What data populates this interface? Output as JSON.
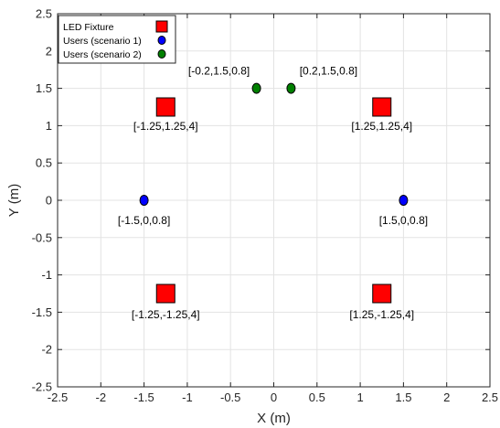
{
  "chart_data": {
    "type": "scatter",
    "xlabel": "X (m)",
    "ylabel": "Y (m)",
    "xlim": [
      -2.5,
      2.5
    ],
    "ylim": [
      -2.5,
      2.5
    ],
    "xticks": [
      -2.5,
      -2,
      -1.5,
      -1,
      -0.5,
      0,
      0.5,
      1,
      1.5,
      2,
      2.5
    ],
    "yticks": [
      -2.5,
      -2,
      -1.5,
      -1,
      -0.5,
      0,
      0.5,
      1,
      1.5,
      2,
      2.5
    ],
    "grid": true,
    "legend_position": "top-left",
    "series": [
      {
        "name": "LED Fixture",
        "marker": "square",
        "color": "#ff0000",
        "points": [
          {
            "x": -1.25,
            "y": 1.25,
            "label": "[-1.25,1.25,4]"
          },
          {
            "x": 1.25,
            "y": 1.25,
            "label": "[1.25,1.25,4]"
          },
          {
            "x": -1.25,
            "y": -1.25,
            "label": "[-1.25,-1.25,4]"
          },
          {
            "x": 1.25,
            "y": -1.25,
            "label": "[1.25,-1.25,4]"
          }
        ]
      },
      {
        "name": "Users (scenario 1)",
        "marker": "circle",
        "color": "#0000ff",
        "points": [
          {
            "x": -1.5,
            "y": 0,
            "label": "[-1.5,0,0.8]"
          },
          {
            "x": 1.5,
            "y": 0,
            "label": "[1.5,0,0.8]"
          }
        ]
      },
      {
        "name": "Users (scenario 2)",
        "marker": "circle",
        "color": "#008000",
        "points": [
          {
            "x": -0.2,
            "y": 1.5,
            "label": "[-0.2,1.5,0.8]"
          },
          {
            "x": 0.2,
            "y": 1.5,
            "label": "[0.2,1.5,0.8]"
          }
        ]
      }
    ]
  }
}
